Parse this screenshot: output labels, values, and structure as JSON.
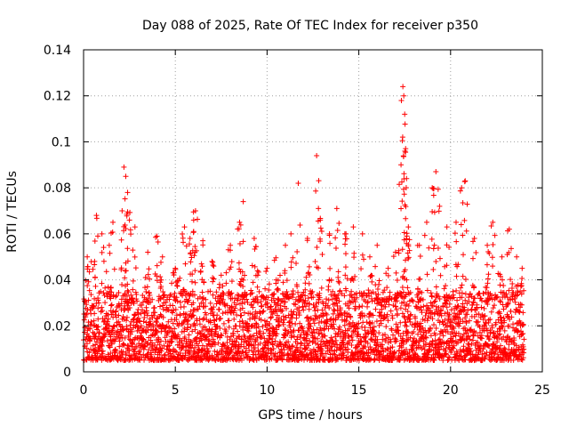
{
  "chart_data": {
    "type": "scatter",
    "title": "Day 088 of 2025, Rate Of TEC Index for receiver p350",
    "xlabel": "GPS time / hours",
    "ylabel": "ROTI / TECUs",
    "xlim": [
      0,
      25
    ],
    "ylim": [
      0,
      0.14
    ],
    "xticks": [
      0,
      5,
      10,
      15,
      20,
      25
    ],
    "yticks": [
      0,
      0.02,
      0.04,
      0.06,
      0.08,
      0.1,
      0.12,
      0.14
    ],
    "xtick_labels": [
      "0",
      "5",
      "10",
      "15",
      "20",
      "25"
    ],
    "ytick_labels": [
      "0",
      "0.02",
      "0.04",
      "0.06",
      "0.08",
      "0.1",
      "0.12",
      "0.14"
    ],
    "grid": true,
    "marker": "+",
    "color": "#ff0000",
    "x_data_range": [
      0,
      24
    ],
    "typical_band": [
      0.005,
      0.03
    ],
    "peaks": [
      {
        "x": 0.2,
        "y": 0.05
      },
      {
        "x": 0.6,
        "y": 0.048
      },
      {
        "x": 0.7,
        "y": 0.068
      },
      {
        "x": 1.0,
        "y": 0.06
      },
      {
        "x": 1.4,
        "y": 0.055
      },
      {
        "x": 1.6,
        "y": 0.065
      },
      {
        "x": 2.1,
        "y": 0.07
      },
      {
        "x": 2.2,
        "y": 0.089
      },
      {
        "x": 2.3,
        "y": 0.085
      },
      {
        "x": 2.4,
        "y": 0.078
      },
      {
        "x": 2.5,
        "y": 0.066
      },
      {
        "x": 2.8,
        "y": 0.063
      },
      {
        "x": 3.5,
        "y": 0.052
      },
      {
        "x": 4.0,
        "y": 0.059
      },
      {
        "x": 4.3,
        "y": 0.05
      },
      {
        "x": 5.0,
        "y": 0.045
      },
      {
        "x": 5.5,
        "y": 0.063
      },
      {
        "x": 5.8,
        "y": 0.058
      },
      {
        "x": 6.0,
        "y": 0.066
      },
      {
        "x": 6.1,
        "y": 0.07
      },
      {
        "x": 6.5,
        "y": 0.057
      },
      {
        "x": 7.0,
        "y": 0.048
      },
      {
        "x": 7.5,
        "y": 0.042
      },
      {
        "x": 8.0,
        "y": 0.055
      },
      {
        "x": 8.5,
        "y": 0.065
      },
      {
        "x": 8.7,
        "y": 0.074
      },
      {
        "x": 9.3,
        "y": 0.058
      },
      {
        "x": 10.0,
        "y": 0.045
      },
      {
        "x": 10.5,
        "y": 0.04
      },
      {
        "x": 11.0,
        "y": 0.055
      },
      {
        "x": 11.3,
        "y": 0.06
      },
      {
        "x": 11.7,
        "y": 0.082
      },
      {
        "x": 12.2,
        "y": 0.058
      },
      {
        "x": 12.7,
        "y": 0.094
      },
      {
        "x": 12.8,
        "y": 0.071
      },
      {
        "x": 12.9,
        "y": 0.066
      },
      {
        "x": 13.4,
        "y": 0.06
      },
      {
        "x": 13.8,
        "y": 0.071
      },
      {
        "x": 14.3,
        "y": 0.06
      },
      {
        "x": 14.7,
        "y": 0.063
      },
      {
        "x": 15.2,
        "y": 0.06
      },
      {
        "x": 15.6,
        "y": 0.05
      },
      {
        "x": 16.0,
        "y": 0.055
      },
      {
        "x": 16.6,
        "y": 0.045
      },
      {
        "x": 17.0,
        "y": 0.052
      },
      {
        "x": 17.3,
        "y": 0.09
      },
      {
        "x": 17.4,
        "y": 0.124
      },
      {
        "x": 17.45,
        "y": 0.12
      },
      {
        "x": 17.5,
        "y": 0.112
      },
      {
        "x": 17.55,
        "y": 0.097
      },
      {
        "x": 17.6,
        "y": 0.084
      },
      {
        "x": 17.7,
        "y": 0.063
      },
      {
        "x": 18.3,
        "y": 0.055
      },
      {
        "x": 18.7,
        "y": 0.065
      },
      {
        "x": 19.0,
        "y": 0.08
      },
      {
        "x": 19.2,
        "y": 0.087
      },
      {
        "x": 19.4,
        "y": 0.072
      },
      {
        "x": 19.8,
        "y": 0.063
      },
      {
        "x": 20.3,
        "y": 0.065
      },
      {
        "x": 20.6,
        "y": 0.08
      },
      {
        "x": 20.8,
        "y": 0.083
      },
      {
        "x": 21.3,
        "y": 0.058
      },
      {
        "x": 22.0,
        "y": 0.055
      },
      {
        "x": 22.3,
        "y": 0.065
      },
      {
        "x": 22.8,
        "y": 0.05
      },
      {
        "x": 23.2,
        "y": 0.062
      },
      {
        "x": 23.6,
        "y": 0.05
      },
      {
        "x": 23.9,
        "y": 0.045
      }
    ]
  }
}
